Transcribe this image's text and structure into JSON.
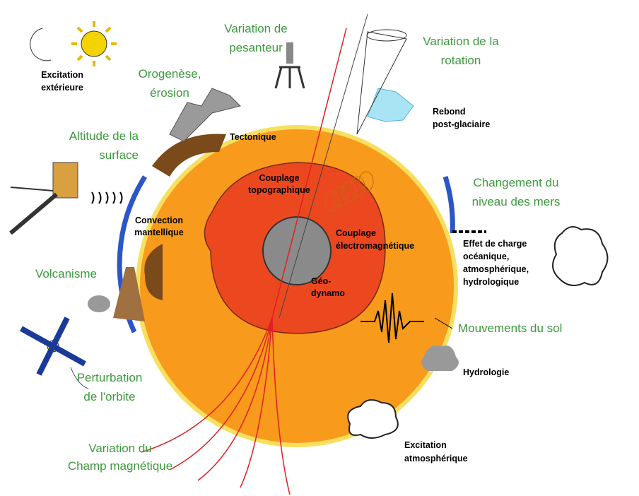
{
  "labels": [
    {
      "lines": [
        "Variation de",
        "pesanteur"
      ]
    },
    {
      "lines": [
        "Variation de la",
        "rotation"
      ]
    },
    {
      "lines": [
        "Orogenèse,",
        "érosion"
      ]
    },
    {
      "lines": [
        "Altitude de la",
        "surface"
      ]
    },
    {
      "lines": [
        "Changement du",
        "niveau des mers"
      ]
    },
    {
      "lines": [
        "Volcanisme"
      ]
    },
    {
      "lines": [
        "Mouvements du sol"
      ]
    },
    {
      "lines": [
        "Perturbation",
        "de l'orbite"
      ]
    },
    {
      "lines": [
        "Variation du",
        "Champ magnétique"
      ]
    },
    {
      "lines": [
        "Excitation",
        "extérieure"
      ]
    },
    {
      "lines": [
        "Rebond",
        "post-glaciaire"
      ]
    },
    {
      "lines": [
        "Tectonique"
      ]
    },
    {
      "lines": [
        "Couplage",
        "topographique"
      ]
    },
    {
      "lines": [
        "Convection",
        "mantellique"
      ]
    },
    {
      "lines": [
        "Couplage",
        "électromagnétique"
      ]
    },
    {
      "lines": [
        "Effet de charge",
        "océanique,",
        "atmosphérique,",
        "hydrologique"
      ]
    },
    {
      "lines": [
        "Géo-",
        "dynamo"
      ]
    },
    {
      "lines": [
        "Hydrologie"
      ]
    },
    {
      "lines": [
        "Excitation",
        "atmosphérique"
      ]
    }
  ]
}
